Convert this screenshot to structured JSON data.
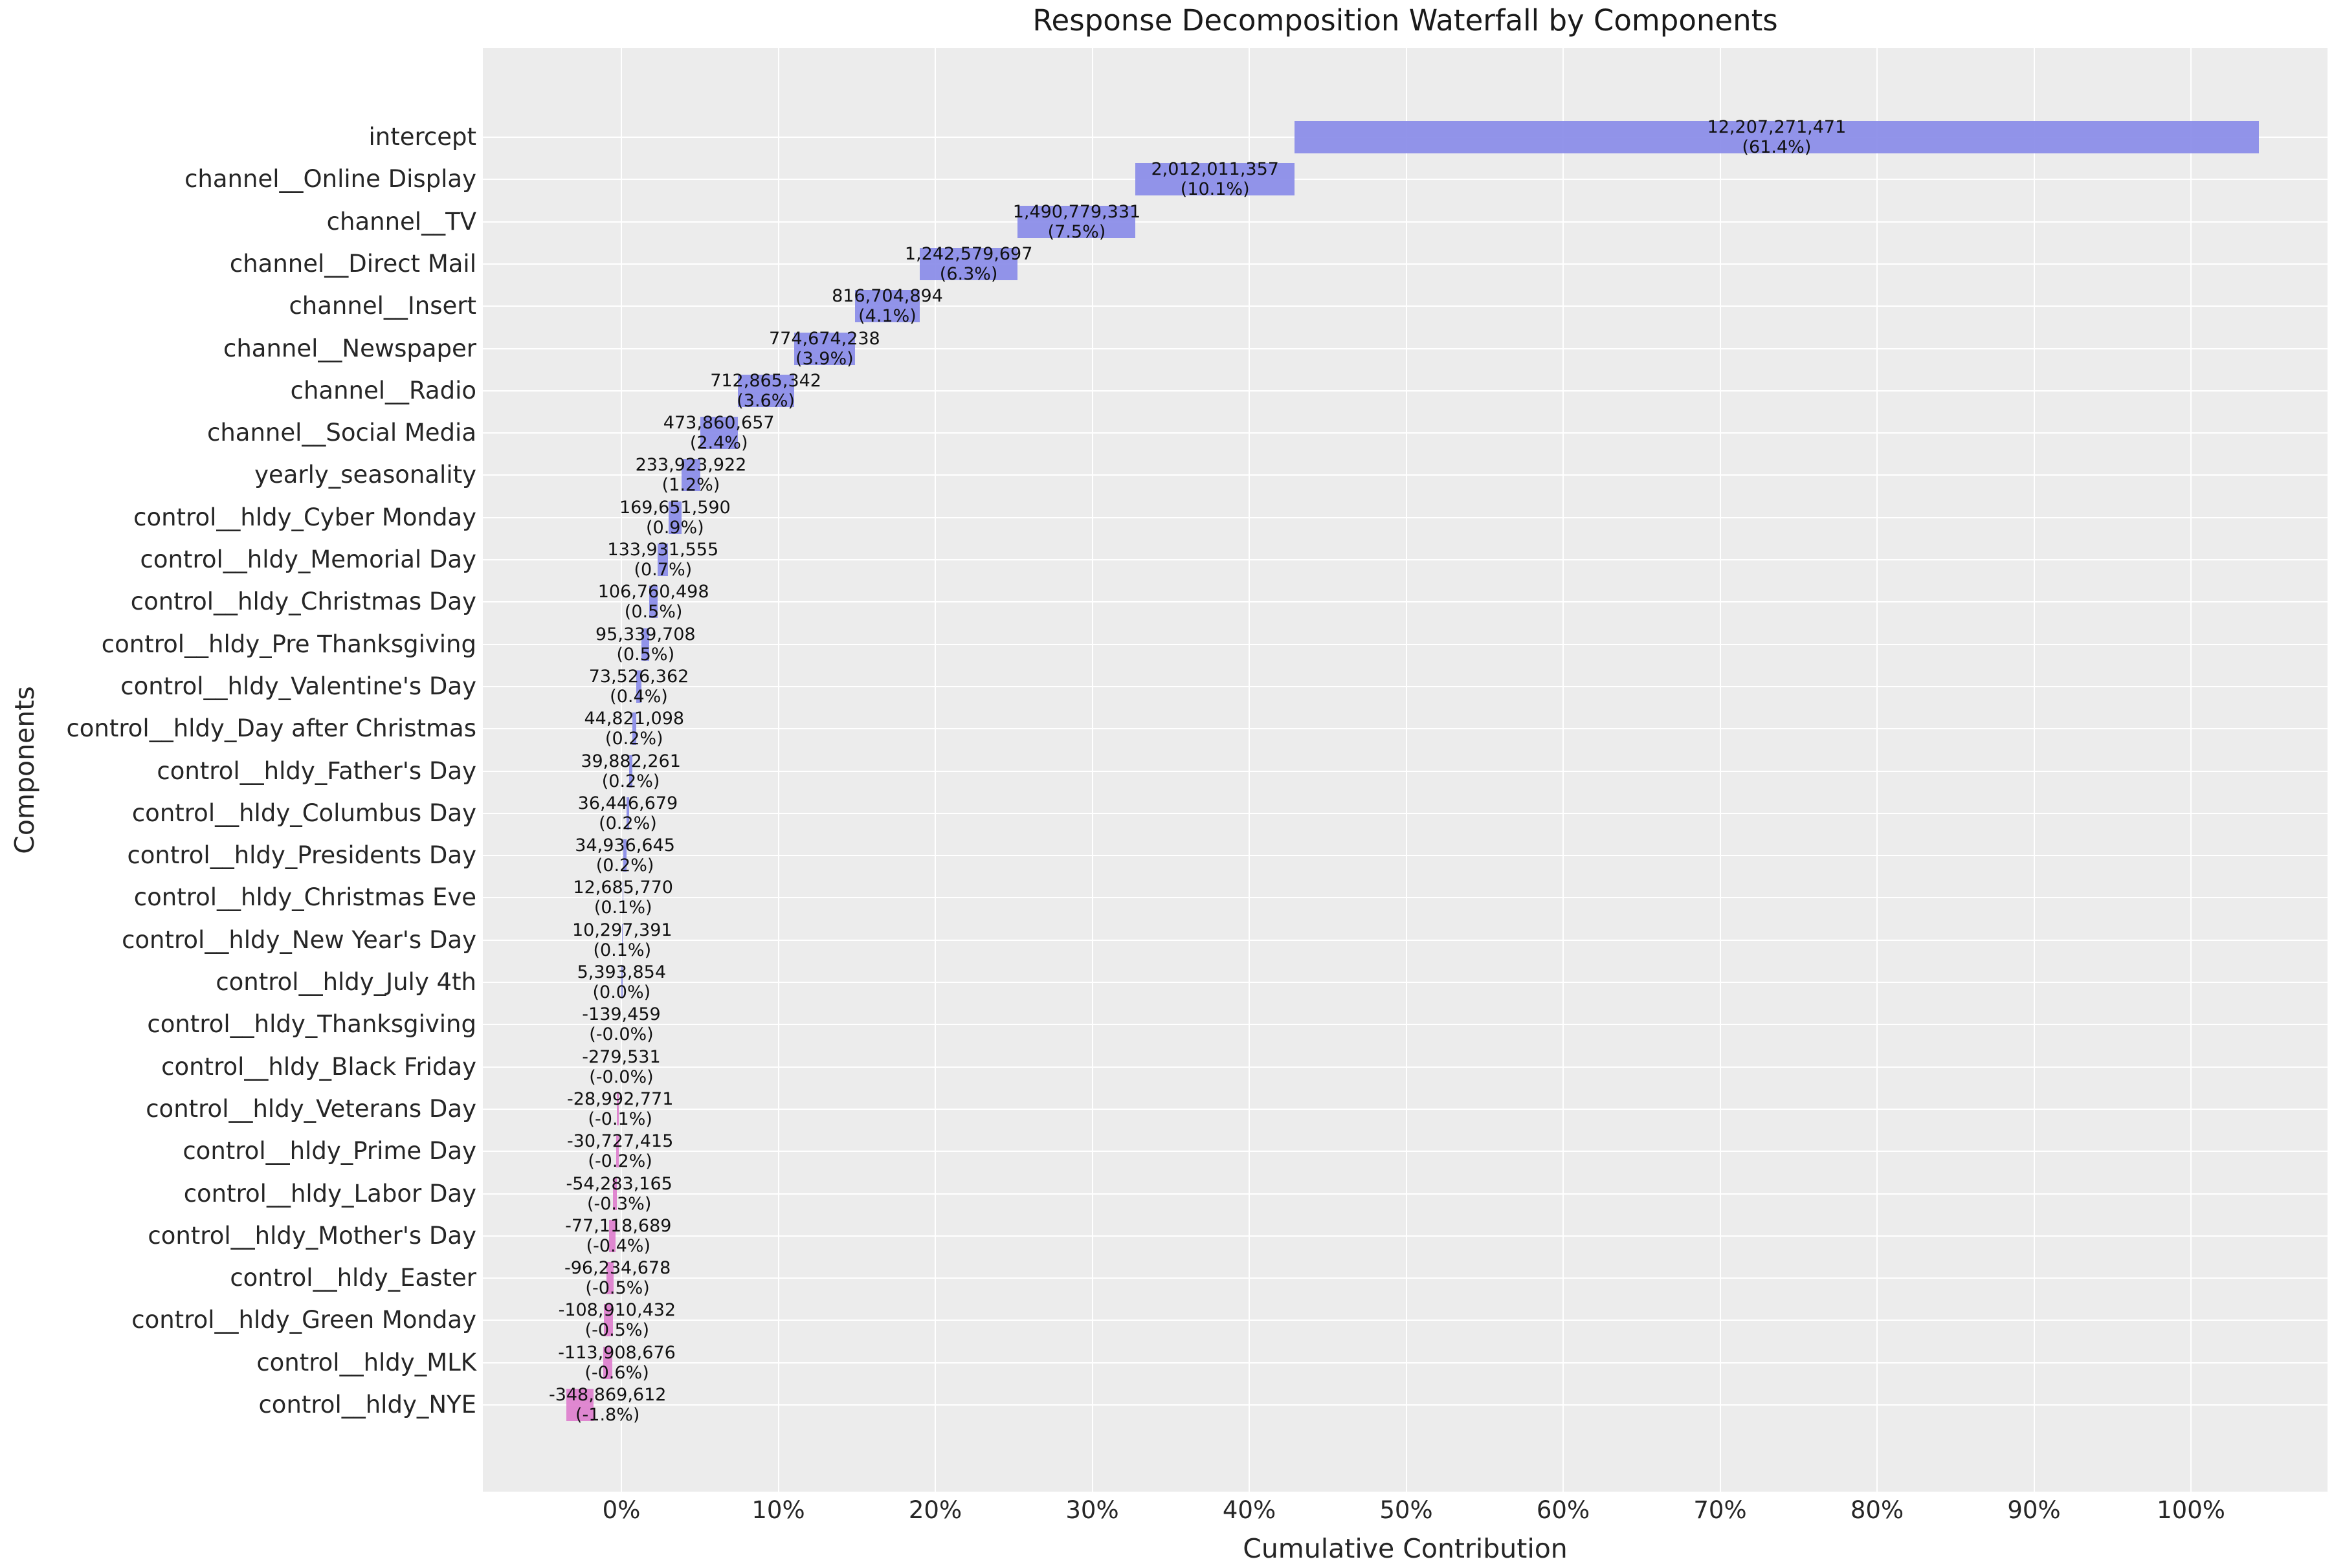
{
  "chart_data": {
    "type": "bar",
    "subtype": "horizontal-waterfall",
    "title": "Response Decomposition Waterfall by Components",
    "xlabel": "Cumulative Contribution",
    "ylabel": "Components",
    "legend": "none",
    "grid": "on",
    "x_tick_labels": [
      "0%",
      "10%",
      "20%",
      "30%",
      "40%",
      "50%",
      "60%",
      "70%",
      "80%",
      "90%",
      "100%"
    ],
    "x_tick_values": [
      0,
      10,
      20,
      30,
      40,
      50,
      60,
      70,
      80,
      90,
      100
    ],
    "xlim_pct": [
      -8.8,
      108.8
    ],
    "colors": {
      "positive_bar": "#898BE8",
      "negative_bar": "#DD7ECD",
      "plot_background": "#ECECEC",
      "gridline": "#FFFFFF",
      "text": "#262626"
    },
    "bars": [
      {
        "label": "intercept",
        "value": 12207271471,
        "value_label": "12,207,271,471",
        "pct_label": "(61.4%)"
      },
      {
        "label": "channel__Online Display",
        "value": 2012011357,
        "value_label": "2,012,011,357",
        "pct_label": "(10.1%)"
      },
      {
        "label": "channel__TV",
        "value": 1490779331,
        "value_label": "1,490,779,331",
        "pct_label": "(7.5%)"
      },
      {
        "label": "channel__Direct Mail",
        "value": 1242579697,
        "value_label": "1,242,579,697",
        "pct_label": "(6.3%)"
      },
      {
        "label": "channel__Insert",
        "value": 816704894,
        "value_label": "816,704,894",
        "pct_label": "(4.1%)"
      },
      {
        "label": "channel__Newspaper",
        "value": 774674238,
        "value_label": "774,674,238",
        "pct_label": "(3.9%)"
      },
      {
        "label": "channel__Radio",
        "value": 712865342,
        "value_label": "712,865,342",
        "pct_label": "(3.6%)"
      },
      {
        "label": "channel__Social Media",
        "value": 473860657,
        "value_label": "473,860,657",
        "pct_label": "(2.4%)"
      },
      {
        "label": "yearly_seasonality",
        "value": 233923922,
        "value_label": "233,923,922",
        "pct_label": "(1.2%)"
      },
      {
        "label": "control__hldy_Cyber Monday",
        "value": 169651590,
        "value_label": "169,651,590",
        "pct_label": "(0.9%)"
      },
      {
        "label": "control__hldy_Memorial Day",
        "value": 133931555,
        "value_label": "133,931,555",
        "pct_label": "(0.7%)"
      },
      {
        "label": "control__hldy_Christmas Day",
        "value": 106760498,
        "value_label": "106,760,498",
        "pct_label": "(0.5%)"
      },
      {
        "label": "control__hldy_Pre Thanksgiving",
        "value": 95339708,
        "value_label": "95,339,708",
        "pct_label": "(0.5%)"
      },
      {
        "label": "control__hldy_Valentine's Day",
        "value": 73526362,
        "value_label": "73,526,362",
        "pct_label": "(0.4%)"
      },
      {
        "label": "control__hldy_Day after Christmas",
        "value": 44821098,
        "value_label": "44,821,098",
        "pct_label": "(0.2%)"
      },
      {
        "label": "control__hldy_Father's Day",
        "value": 39882261,
        "value_label": "39,882,261",
        "pct_label": "(0.2%)"
      },
      {
        "label": "control__hldy_Columbus Day",
        "value": 36446679,
        "value_label": "36,446,679",
        "pct_label": "(0.2%)"
      },
      {
        "label": "control__hldy_Presidents Day",
        "value": 34936645,
        "value_label": "34,936,645",
        "pct_label": "(0.2%)"
      },
      {
        "label": "control__hldy_Christmas Eve",
        "value": 12685770,
        "value_label": "12,685,770",
        "pct_label": "(0.1%)"
      },
      {
        "label": "control__hldy_New Year's Day",
        "value": 10297391,
        "value_label": "10,297,391",
        "pct_label": "(0.1%)"
      },
      {
        "label": "control__hldy_July 4th",
        "value": 5393854,
        "value_label": "5,393,854",
        "pct_label": "(0.0%)"
      },
      {
        "label": "control__hldy_Thanksgiving",
        "value": -139459,
        "value_label": "-139,459",
        "pct_label": "(-0.0%)"
      },
      {
        "label": "control__hldy_Black Friday",
        "value": -279531,
        "value_label": "-279,531",
        "pct_label": "(-0.0%)"
      },
      {
        "label": "control__hldy_Veterans Day",
        "value": -28992771,
        "value_label": "-28,992,771",
        "pct_label": "(-0.1%)"
      },
      {
        "label": "control__hldy_Prime Day",
        "value": -30727415,
        "value_label": "-30,727,415",
        "pct_label": "(-0.2%)"
      },
      {
        "label": "control__hldy_Labor Day",
        "value": -54283165,
        "value_label": "-54,283,165",
        "pct_label": "(-0.3%)"
      },
      {
        "label": "control__hldy_Mother's Day",
        "value": -77118689,
        "value_label": "-77,118,689",
        "pct_label": "(-0.4%)"
      },
      {
        "label": "control__hldy_Easter",
        "value": -96234678,
        "value_label": "-96,234,678",
        "pct_label": "(-0.5%)"
      },
      {
        "label": "control__hldy_Green Monday",
        "value": -108910432,
        "value_label": "-108,910,432",
        "pct_label": "(-0.5%)"
      },
      {
        "label": "control__hldy_MLK",
        "value": -113908676,
        "value_label": "-113,908,676",
        "pct_label": "(-0.6%)"
      },
      {
        "label": "control__hldy_NYE",
        "value": -348869612,
        "value_label": "-348,869,612",
        "pct_label": "(-1.8%)"
      }
    ]
  }
}
